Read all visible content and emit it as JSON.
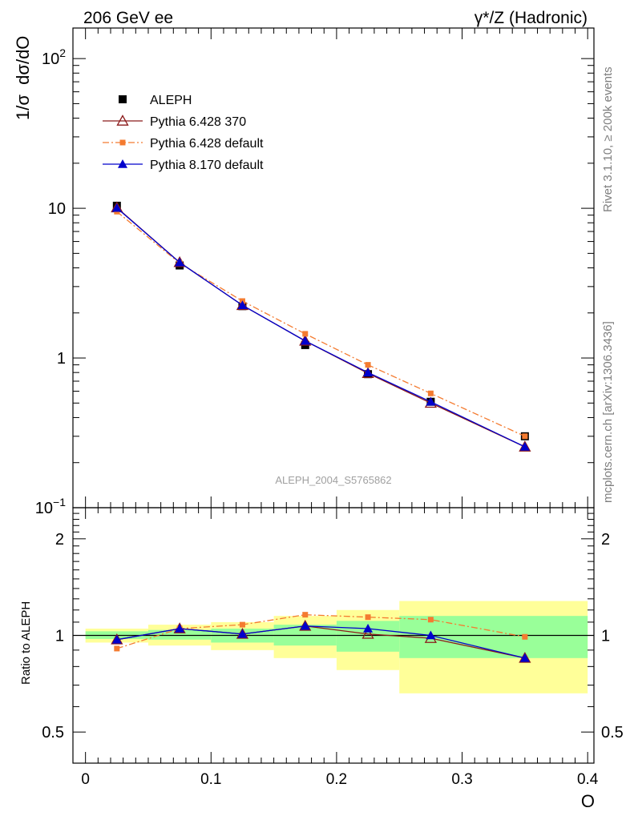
{
  "header": {
    "left_label": "206 GeV ee",
    "right_label": "γ*/Z (Hadronic)"
  },
  "side_labels": {
    "rivet": "Rivet 3.1.10, ≥ 200k events",
    "mcplots": "mcplots.cern.ch [arXiv:1306.3436]"
  },
  "watermark": "ALEPH_2004_S5765862",
  "chart_data": [
    {
      "type": "line",
      "ylabel": "1/σ  dσ/dO",
      "yscale": "log",
      "ylim": [
        0.1,
        160
      ],
      "xlim": [
        -0.01,
        0.405
      ],
      "ytick_labels": [
        "10^-1",
        "1",
        "10",
        "10^2"
      ],
      "x": [
        0.025,
        0.075,
        0.125,
        0.175,
        0.225,
        0.275,
        0.35
      ],
      "series": [
        {
          "name": "ALEPH",
          "color": "#000000",
          "marker": "square-filled",
          "values": [
            10.4,
            4.15,
            2.22,
            1.22,
            0.78,
            0.51,
            0.3
          ]
        },
        {
          "name": "Pythia 6.428 370",
          "color": "#8b1a1a",
          "marker": "triangle-open",
          "values": [
            10.1,
            4.35,
            2.25,
            1.3,
            0.79,
            0.5,
            0.255
          ]
        },
        {
          "name": "Pythia 6.428 default",
          "color": "#f47b30",
          "marker": "square-small",
          "dash": "dashdot",
          "values": [
            9.5,
            4.3,
            2.4,
            1.45,
            0.9,
            0.58,
            0.3
          ]
        },
        {
          "name": "Pythia 8.170 default",
          "color": "#0000cc",
          "marker": "triangle-filled",
          "values": [
            10.05,
            4.35,
            2.25,
            1.3,
            0.8,
            0.51,
            0.255
          ]
        }
      ]
    },
    {
      "type": "line",
      "ylabel": "Ratio to ALEPH",
      "yscale": "log",
      "ylim": [
        0.4,
        2.5
      ],
      "ytick_labels": [
        "0.5",
        "1",
        "2"
      ],
      "xlabel": "O",
      "xtick_labels": [
        "0",
        "0.1",
        "0.2",
        "0.3",
        "0.4"
      ],
      "bands": [
        {
          "x0": 0.0,
          "x1": 0.05,
          "yellow": [
            0.95,
            1.05
          ],
          "green": [
            0.975,
            1.03
          ]
        },
        {
          "x0": 0.05,
          "x1": 0.1,
          "yellow": [
            0.93,
            1.08
          ],
          "green": [
            0.97,
            1.04
          ]
        },
        {
          "x0": 0.1,
          "x1": 0.15,
          "yellow": [
            0.9,
            1.1
          ],
          "green": [
            0.95,
            1.05
          ]
        },
        {
          "x0": 0.15,
          "x1": 0.2,
          "yellow": [
            0.85,
            1.15
          ],
          "green": [
            0.93,
            1.08
          ]
        },
        {
          "x0": 0.2,
          "x1": 0.25,
          "yellow": [
            0.78,
            1.2
          ],
          "green": [
            0.89,
            1.11
          ]
        },
        {
          "x0": 0.25,
          "x1": 0.4,
          "yellow": [
            0.66,
            1.28
          ],
          "green": [
            0.85,
            1.15
          ]
        }
      ],
      "x": [
        0.025,
        0.075,
        0.125,
        0.175,
        0.225,
        0.275,
        0.35
      ],
      "series": [
        {
          "name": "Pythia 6.428 370",
          "color": "#8b1a1a",
          "marker": "triangle-open",
          "values": [
            0.97,
            1.05,
            1.01,
            1.07,
            1.01,
            0.98,
            0.85
          ]
        },
        {
          "name": "Pythia 6.428 default",
          "color": "#f47b30",
          "marker": "square-small",
          "dash": "dashdot",
          "values": [
            0.91,
            1.05,
            1.08,
            1.16,
            1.14,
            1.12,
            0.99
          ]
        },
        {
          "name": "Pythia 8.170 default",
          "color": "#0000cc",
          "marker": "triangle-filled",
          "values": [
            0.97,
            1.05,
            1.01,
            1.07,
            1.05,
            1.0,
            0.85
          ]
        }
      ]
    }
  ]
}
